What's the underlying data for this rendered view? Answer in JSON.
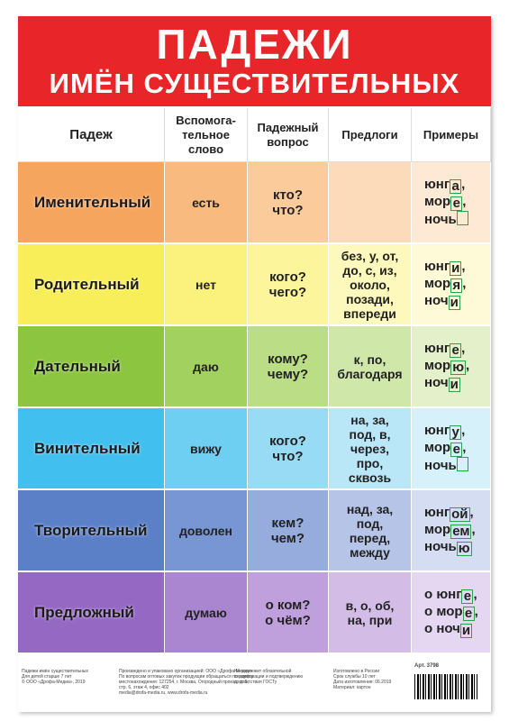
{
  "header": {
    "title": "ПАДЕЖИ",
    "subtitle": "ИМЁН СУЩЕСТВИТЕЛЬНЫХ"
  },
  "table": {
    "columns": [
      [
        "Падеж"
      ],
      [
        "Вспомога-",
        "тельное",
        "слово"
      ],
      [
        "Падежный",
        "вопрос"
      ],
      [
        "Предлоги"
      ],
      [
        "Примеры"
      ]
    ],
    "rows": [
      {
        "case": "Именительный",
        "word": "есть",
        "question": [
          "кто?",
          "что?"
        ],
        "prepositions": [],
        "examples": [
          {
            "stem": "юнг",
            "ending": "а",
            "punct": ","
          },
          {
            "stem": "мор",
            "ending": "е",
            "punct": ","
          },
          {
            "stem": "ночь"
          }
        ],
        "colors": [
          "#f6a55f",
          "#f9ba7f",
          "#fbcb9c",
          "#fcdbbb",
          "#fde9d4"
        ]
      },
      {
        "case": "Родительный",
        "word": "нет",
        "question": [
          "кого?",
          "чего?"
        ],
        "prepositions": [
          "без, у, от,",
          "до, с, из,",
          "около,",
          "позади,",
          "впереди"
        ],
        "examples": [
          {
            "stem": "юнг",
            "ending": "и",
            "punct": ","
          },
          {
            "stem": "мор",
            "ending": "я",
            "punct": ","
          },
          {
            "stem": "ноч",
            "ending": "и"
          }
        ],
        "colors": [
          "#f8ee5a",
          "#faf27c",
          "#fcf59c",
          "#fdf8bc",
          "#fefad7"
        ]
      },
      {
        "case": "Дательный",
        "word": "даю",
        "question": [
          "кому?",
          "чему?"
        ],
        "prepositions": [
          "к, по,",
          "благодаря"
        ],
        "examples": [
          {
            "stem": "юнг",
            "ending": "е",
            "punct": ","
          },
          {
            "stem": "мор",
            "ending": "ю",
            "punct": ","
          },
          {
            "stem": "ноч",
            "ending": "и"
          }
        ],
        "colors": [
          "#8cc540",
          "#a3d15f",
          "#badd86",
          "#cfe7a9",
          "#e3f0ca"
        ]
      },
      {
        "case": "Винительный",
        "word": "вижу",
        "question": [
          "кого?",
          "что?"
        ],
        "prepositions": [
          "на, за,",
          "под, в,",
          "через,",
          "про,",
          "сквозь"
        ],
        "examples": [
          {
            "stem": "юнг",
            "ending": "у",
            "punct": ","
          },
          {
            "stem": "мор",
            "ending": "е",
            "punct": ","
          },
          {
            "stem": "ночь"
          }
        ],
        "colors": [
          "#41bfee",
          "#6fcff2",
          "#97dbf5",
          "#b9e7f8",
          "#d7f1fb"
        ]
      },
      {
        "case": "Творительный",
        "word": "доволен",
        "question": [
          "кем?",
          "чем?"
        ],
        "prepositions": [
          "над, за,",
          "под,",
          "перед,",
          "между"
        ],
        "examples": [
          {
            "stem": "юнг",
            "ending": "ой",
            "punct": ","
          },
          {
            "stem": "мор",
            "ending": "ем",
            "punct": ","
          },
          {
            "stem": "ночь",
            "ending": "ю"
          }
        ],
        "colors": [
          "#5b80c8",
          "#7896d3",
          "#96acdd",
          "#b5c4e7",
          "#d4ddf1"
        ]
      },
      {
        "case": "Предложный",
        "word": "думаю",
        "question": [
          "о ком?",
          "о чём?"
        ],
        "prepositions": [
          "в, о, об,",
          "на, при"
        ],
        "examples": [
          {
            "stem": "о юнг",
            "ending": "е",
            "punct": ","
          },
          {
            "stem": "о мор",
            "ending": "е",
            "punct": ","
          },
          {
            "stem": "о ноч",
            "ending": "и"
          }
        ],
        "colors": [
          "#9568c4",
          "#aa86d0",
          "#bf9fdc",
          "#d3bde7",
          "#e5d7f1"
        ]
      }
    ]
  },
  "footer": {
    "columns": [
      [
        "Падежи имён существительных",
        "Для детей старше 7 лет",
        "© ООО «Дрофа-Медиа», 2019"
      ],
      [
        "Произведено и упаковано организацией: ООО «Дрофа-Медиа»",
        "По вопросам оптовых закупок продукции обращаться по адресу",
        "местонахождения: 127254, г. Москва, Огородный проезд, д. 5,",
        "стр. 6, этаж 4, офис 402",
        "media@drofa-media.ru, www.drofa-media.ru"
      ],
      [
        "Не подлежит обязательной",
        "сертификации и подтверждению",
        "соответствия ГОСТу"
      ],
      [
        "Изготовлено в России",
        "Срок службы 10 лет",
        "Дата изготовления: 06.2019",
        "Материал: картон"
      ]
    ],
    "article": "Арт. 3798"
  }
}
